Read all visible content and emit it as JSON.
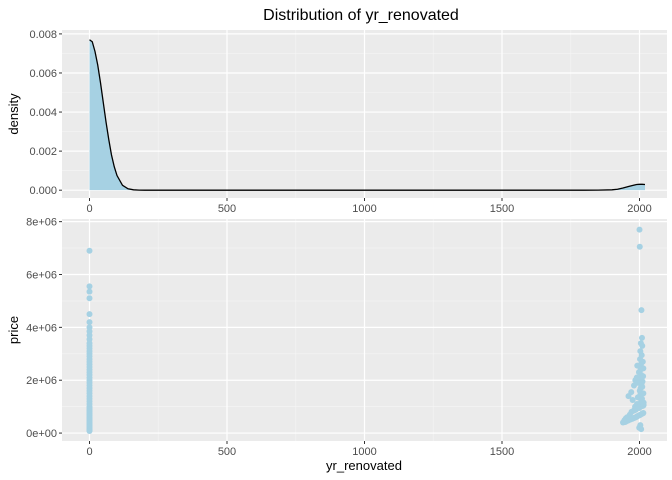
{
  "chart_data": [
    {
      "type": "area",
      "title": "Distribution of yr_renovated",
      "xlabel": "",
      "ylabel": "density",
      "xlim": [
        -100,
        2100
      ],
      "ylim": [
        -0.0004,
        0.0082
      ],
      "x_ticks": [
        0,
        500,
        1000,
        1500,
        2000
      ],
      "x_tick_labels": [
        "0",
        "500",
        "1000",
        "1500",
        "2000"
      ],
      "y_ticks": [
        0,
        0.002,
        0.004,
        0.006,
        0.008
      ],
      "y_tick_labels": [
        "0.000",
        "0.002",
        "0.004",
        "0.006",
        "0.008"
      ],
      "grid": true,
      "fill_color": "#A6D1E3",
      "line_color": "#000000",
      "panel_color": "#EBEBEB",
      "series": [
        {
          "x": [
            0,
            10,
            20,
            30,
            40,
            50,
            60,
            70,
            80,
            90,
            100,
            120,
            140,
            160,
            180,
            200,
            250,
            300,
            500,
            1000,
            1500,
            1800,
            1850,
            1900,
            1920,
            1940,
            1960,
            1980,
            1990,
            2000,
            2010,
            2020
          ],
          "values": [
            0.0077,
            0.0076,
            0.0071,
            0.0064,
            0.0055,
            0.0045,
            0.0035,
            0.0026,
            0.0018,
            0.0012,
            0.00075,
            0.00025,
            7e-05,
            2e-05,
            5e-06,
            1e-06,
            0,
            0,
            0,
            0,
            0,
            1e-06,
            4e-06,
            2e-05,
            5e-05,
            0.00011,
            0.00019,
            0.00026,
            0.00029,
            0.0003,
            0.0003,
            0.00029
          ]
        }
      ]
    },
    {
      "type": "scatter",
      "title": "",
      "xlabel": "yr_renovated",
      "ylabel": "price",
      "xlim": [
        -100,
        2100
      ],
      "ylim": [
        -300000,
        8100000
      ],
      "x_ticks": [
        0,
        500,
        1000,
        1500,
        2000
      ],
      "x_tick_labels": [
        "0",
        "500",
        "1000",
        "1500",
        "2000"
      ],
      "y_ticks": [
        0,
        2000000,
        4000000,
        6000000,
        8000000
      ],
      "y_tick_labels": [
        "0e+00",
        "2e+06",
        "4e+06",
        "6e+06",
        "8e+06"
      ],
      "grid": true,
      "point_color": "#A6D1E3",
      "panel_color": "#EBEBEB",
      "series": [
        {
          "x": [
            0,
            0,
            0,
            0,
            0,
            0,
            0,
            0,
            0,
            0,
            0,
            0,
            0,
            0,
            0,
            0,
            0,
            0,
            0,
            0,
            0,
            0,
            0,
            0,
            0,
            0,
            0,
            0,
            0,
            0,
            0,
            0,
            0,
            0,
            0,
            0,
            0,
            0,
            0,
            0,
            0,
            0,
            0,
            0,
            0,
            0,
            0,
            0,
            0,
            0,
            0,
            0,
            0,
            0,
            0,
            2000,
            2001,
            2007,
            2009,
            2005,
            2010,
            2003,
            2008,
            2002,
            2012,
            2005,
            1992,
            2014,
            2004,
            1998,
            2006,
            2013,
            1990,
            2000,
            1985,
            2011,
            1995,
            2007,
            1980,
            2010,
            2004,
            2001,
            1970,
            2014,
            2003,
            1960,
            1994,
            2009,
            1975,
            2006,
            2015,
            1991,
            2002,
            1984,
            1999,
            1950,
            1945,
            1955,
            1965,
            1971,
            1979,
            1983,
            1986,
            1988,
            1989,
            1993,
            1996,
            1997,
            2000,
            2005,
            2008,
            2012,
            2013,
            2014,
            2015,
            1940,
            1948,
            1953,
            1958,
            1963,
            1968,
            1974,
            1978,
            1982,
            1987,
            1990,
            1993,
            1997,
            2001,
            2004,
            2007,
            2011,
            2014,
            2003,
            1999,
            2006
          ],
          "values": [
            6900000,
            5550000,
            5350000,
            5100000,
            4500000,
            4200000,
            4000000,
            3850000,
            3700000,
            3550000,
            3400000,
            3300000,
            3200000,
            3100000,
            3000000,
            2900000,
            2800000,
            2700000,
            2600000,
            2500000,
            2400000,
            2300000,
            2200000,
            2100000,
            2000000,
            1900000,
            1800000,
            1700000,
            1600000,
            1500000,
            1400000,
            1300000,
            1200000,
            1100000,
            1000000,
            950000,
            900000,
            850000,
            800000,
            750000,
            700000,
            650000,
            600000,
            550000,
            500000,
            450000,
            400000,
            350000,
            300000,
            250000,
            200000,
            150000,
            120000,
            100000,
            80000,
            7700000,
            7050000,
            4650000,
            3600000,
            3400000,
            3300000,
            3100000,
            2950000,
            2800000,
            2700000,
            2600000,
            2550000,
            2450000,
            2400000,
            2300000,
            2200000,
            2150000,
            2100000,
            2050000,
            2000000,
            1950000,
            1900000,
            1850000,
            1800000,
            1750000,
            1700000,
            1600000,
            1550000,
            1500000,
            1450000,
            1400000,
            1350000,
            1300000,
            1250000,
            1200000,
            1150000,
            1100000,
            1050000,
            1000000,
            950000,
            550000,
            480000,
            600000,
            700000,
            800000,
            850000,
            900000,
            880000,
            920000,
            940000,
            960000,
            980000,
            990000,
            1000000,
            1010000,
            1020000,
            1030000,
            1040000,
            1050000,
            1060000,
            400000,
            420000,
            450000,
            470000,
            500000,
            520000,
            540000,
            560000,
            580000,
            600000,
            620000,
            640000,
            660000,
            680000,
            700000,
            720000,
            740000,
            760000,
            300000,
            200000,
            150000
          ]
        }
      ]
    }
  ]
}
